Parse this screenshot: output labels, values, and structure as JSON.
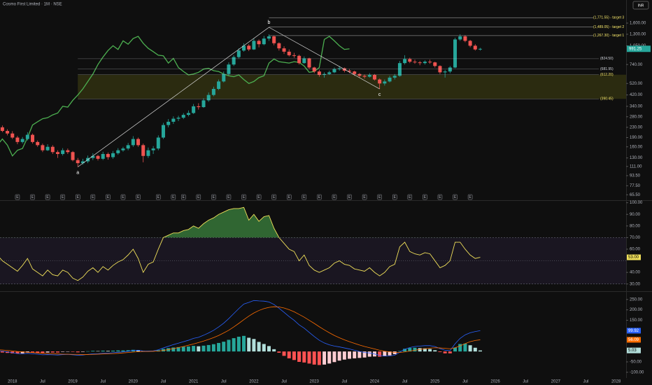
{
  "chart_data": {
    "type": "candlestick",
    "title": "Cosmo First Limited · 1M · NSE",
    "currency": "INR",
    "log": true,
    "ylim": [
      60,
      2460
    ],
    "xlim": [
      "2017-09",
      "2028-03"
    ],
    "colors": {
      "up": "#26a69a",
      "down": "#ef5350",
      "lagging": "#4caf50",
      "targets": "#f5e66b",
      "levels": "#d1d4dc",
      "zone": "#4d4d12",
      "waves": "#d9d9d9",
      "events": "#9598a1"
    },
    "yticks": [
      {
        "value": 1600,
        "label": "1,600.00"
      },
      {
        "value": 1300,
        "label": "1,300.00"
      },
      {
        "value": 1050,
        "label": "1,050.00"
      },
      {
        "value": 740,
        "label": "740.00"
      },
      {
        "value": 520,
        "label": "520.00"
      },
      {
        "value": 420,
        "label": "420.00"
      },
      {
        "value": 340,
        "label": "340.00"
      },
      {
        "value": 280,
        "label": "280.00"
      },
      {
        "value": 230,
        "label": "230.00"
      },
      {
        "value": 190,
        "label": "190.00"
      },
      {
        "value": 160,
        "label": "160.00"
      },
      {
        "value": 130,
        "label": "130.00"
      },
      {
        "value": 111,
        "label": "111.00"
      },
      {
        "value": 93.5,
        "label": "93.50"
      },
      {
        "value": 77.5,
        "label": "77.50"
      },
      {
        "value": 65.5,
        "label": "65.50"
      }
    ],
    "xticks": [
      {
        "value": "2018-01",
        "label": "2018"
      },
      {
        "value": "2018-07",
        "label": "Jul"
      },
      {
        "value": "2019-01",
        "label": "2019"
      },
      {
        "value": "2019-07",
        "label": "Jul"
      },
      {
        "value": "2020-01",
        "label": "2020"
      },
      {
        "value": "2020-07",
        "label": "Jul"
      },
      {
        "value": "2021-01",
        "label": "2021"
      },
      {
        "value": "2021-07",
        "label": "Jul"
      },
      {
        "value": "2022-01",
        "label": "2022"
      },
      {
        "value": "2022-07",
        "label": "Jul"
      },
      {
        "value": "2023-01",
        "label": "2023"
      },
      {
        "value": "2023-07",
        "label": "Jul"
      },
      {
        "value": "2024-01",
        "label": "2024"
      },
      {
        "value": "2024-07",
        "label": "Jul"
      },
      {
        "value": "2025-01",
        "label": "2025"
      },
      {
        "value": "2025-07",
        "label": "Jul"
      },
      {
        "value": "2026-01",
        "label": "2026"
      },
      {
        "value": "2026-07",
        "label": "Jul"
      },
      {
        "value": "2027-01",
        "label": "2027"
      },
      {
        "value": "2027-07",
        "label": "Jul"
      },
      {
        "value": "2028-01",
        "label": "2028"
      }
    ],
    "x": [
      "2017-10",
      "2017-11",
      "2017-12",
      "2018-01",
      "2018-02",
      "2018-03",
      "2018-04",
      "2018-05",
      "2018-06",
      "2018-07",
      "2018-08",
      "2018-09",
      "2018-10",
      "2018-11",
      "2018-12",
      "2019-01",
      "2019-02",
      "2019-03",
      "2019-04",
      "2019-05",
      "2019-06",
      "2019-07",
      "2019-08",
      "2019-09",
      "2019-10",
      "2019-11",
      "2019-12",
      "2020-01",
      "2020-02",
      "2020-03",
      "2020-04",
      "2020-05",
      "2020-06",
      "2020-07",
      "2020-08",
      "2020-09",
      "2020-10",
      "2020-11",
      "2020-12",
      "2021-01",
      "2021-02",
      "2021-03",
      "2021-04",
      "2021-05",
      "2021-06",
      "2021-07",
      "2021-08",
      "2021-09",
      "2021-10",
      "2021-11",
      "2021-12",
      "2022-01",
      "2022-02",
      "2022-03",
      "2022-04",
      "2022-05",
      "2022-06",
      "2022-07",
      "2022-08",
      "2022-09",
      "2022-10",
      "2022-11",
      "2022-12",
      "2023-01",
      "2023-02",
      "2023-03",
      "2023-04",
      "2023-05",
      "2023-06",
      "2023-07",
      "2023-08",
      "2023-09",
      "2023-10",
      "2023-11",
      "2023-12",
      "2024-01",
      "2024-02",
      "2024-03",
      "2024-04",
      "2024-05",
      "2024-06",
      "2024-07",
      "2024-08",
      "2024-09",
      "2024-10",
      "2024-11",
      "2024-12",
      "2025-01",
      "2025-02",
      "2025-03",
      "2025-04",
      "2025-05",
      "2025-06",
      "2025-07",
      "2025-08",
      "2025-09",
      "2025-10"
    ],
    "ohlc": [
      [
        240,
        248,
        222,
        230
      ],
      [
        230,
        238,
        210,
        215
      ],
      [
        215,
        222,
        198,
        205
      ],
      [
        205,
        214,
        185,
        190
      ],
      [
        190,
        196,
        168,
        175
      ],
      [
        175,
        192,
        170,
        185
      ],
      [
        185,
        210,
        180,
        200
      ],
      [
        200,
        205,
        170,
        175
      ],
      [
        175,
        180,
        160,
        165
      ],
      [
        165,
        170,
        145,
        150
      ],
      [
        150,
        168,
        148,
        160
      ],
      [
        160,
        165,
        140,
        145
      ],
      [
        145,
        150,
        130,
        140
      ],
      [
        140,
        156,
        136,
        150
      ],
      [
        150,
        155,
        140,
        145
      ],
      [
        145,
        148,
        122,
        125
      ],
      [
        125,
        130,
        110,
        118
      ],
      [
        118,
        128,
        115,
        122
      ],
      [
        122,
        136,
        118,
        130
      ],
      [
        130,
        142,
        125,
        135
      ],
      [
        135,
        138,
        124,
        128
      ],
      [
        128,
        146,
        125,
        140
      ],
      [
        140,
        144,
        126,
        132
      ],
      [
        132,
        148,
        128,
        142
      ],
      [
        142,
        156,
        138,
        150
      ],
      [
        150,
        160,
        146,
        155
      ],
      [
        155,
        172,
        150,
        165
      ],
      [
        165,
        195,
        160,
        185
      ],
      [
        185,
        190,
        160,
        165
      ],
      [
        165,
        170,
        120,
        135
      ],
      [
        135,
        158,
        130,
        150
      ],
      [
        150,
        162,
        140,
        155
      ],
      [
        155,
        198,
        150,
        190
      ],
      [
        190,
        250,
        185,
        240
      ],
      [
        240,
        268,
        230,
        255
      ],
      [
        255,
        282,
        245,
        270
      ],
      [
        270,
        285,
        258,
        275
      ],
      [
        275,
        300,
        268,
        290
      ],
      [
        290,
        315,
        282,
        300
      ],
      [
        300,
        355,
        295,
        340
      ],
      [
        340,
        360,
        320,
        335
      ],
      [
        335,
        395,
        330,
        380
      ],
      [
        380,
        440,
        370,
        420
      ],
      [
        420,
        490,
        410,
        470
      ],
      [
        470,
        560,
        460,
        540
      ],
      [
        540,
        650,
        530,
        620
      ],
      [
        620,
        770,
        600,
        740
      ],
      [
        740,
        880,
        720,
        850
      ],
      [
        850,
        1000,
        830,
        960
      ],
      [
        960,
        1100,
        940,
        1050
      ],
      [
        1050,
        1080,
        950,
        980
      ],
      [
        980,
        1200,
        970,
        1150
      ],
      [
        1150,
        1180,
        1020,
        1080
      ],
      [
        1080,
        1260,
        1060,
        1200
      ],
      [
        1200,
        1300,
        1150,
        1250
      ],
      [
        1250,
        1270,
        1060,
        1100
      ],
      [
        1100,
        1120,
        960,
        1000
      ],
      [
        1000,
        1040,
        900,
        940
      ],
      [
        940,
        980,
        860,
        880
      ],
      [
        880,
        920,
        840,
        870
      ],
      [
        870,
        890,
        740,
        760
      ],
      [
        760,
        860,
        750,
        830
      ],
      [
        830,
        840,
        680,
        700
      ],
      [
        700,
        710,
        630,
        650
      ],
      [
        650,
        670,
        590,
        610
      ],
      [
        610,
        640,
        580,
        620
      ],
      [
        620,
        660,
        610,
        640
      ],
      [
        640,
        700,
        630,
        680
      ],
      [
        680,
        720,
        660,
        690
      ],
      [
        690,
        700,
        640,
        660
      ],
      [
        660,
        680,
        630,
        650
      ],
      [
        650,
        660,
        600,
        620
      ],
      [
        620,
        630,
        580,
        600
      ],
      [
        600,
        615,
        570,
        590
      ],
      [
        590,
        630,
        580,
        610
      ],
      [
        610,
        620,
        550,
        560
      ],
      [
        560,
        570,
        470,
        520
      ],
      [
        520,
        560,
        500,
        540
      ],
      [
        540,
        600,
        530,
        580
      ],
      [
        580,
        620,
        560,
        600
      ],
      [
        600,
        790,
        590,
        760
      ],
      [
        760,
        880,
        740,
        820
      ],
      [
        820,
        840,
        760,
        780
      ],
      [
        780,
        810,
        750,
        770
      ],
      [
        770,
        790,
        730,
        760
      ],
      [
        760,
        800,
        740,
        780
      ],
      [
        780,
        810,
        750,
        770
      ],
      [
        770,
        780,
        700,
        720
      ],
      [
        720,
        730,
        620,
        640
      ],
      [
        640,
        670,
        580,
        650
      ],
      [
        650,
        720,
        630,
        700
      ],
      [
        700,
        1220,
        690,
        1180
      ],
      [
        1180,
        1300,
        1150,
        1250
      ],
      [
        1250,
        1280,
        1120,
        1150
      ],
      [
        1150,
        1170,
        1020,
        1050
      ],
      [
        1050,
        1080,
        960,
        980
      ],
      [
        980,
        1010,
        960,
        991.25
      ]
    ],
    "lag": 26,
    "targets": [
      {
        "value": 1771.55,
        "label": "(1,771.55) - target 3"
      },
      {
        "value": 1489.05,
        "label": "(1,489.05) - target 2"
      },
      {
        "value": 1267.3,
        "label": "(1,267.30) - target 1"
      }
    ],
    "levels": [
      {
        "value": 824.5,
        "label": "(824.50)"
      },
      {
        "value": 681.95,
        "label": "(681.95)"
      },
      {
        "value": 612.2,
        "label": "(612.20)"
      },
      {
        "value": 390.45,
        "label": "(390.45)"
      }
    ],
    "zone": {
      "start": "2019-02",
      "levels": [
        2,
        3
      ]
    },
    "waves": [
      {
        "label": "a",
        "date": "2019-02",
        "value": 110
      },
      {
        "label": "b",
        "date": "2022-04",
        "value": 1480
      },
      {
        "label": "c",
        "date": "2024-02",
        "value": 470
      }
    ],
    "events": {
      "label": "E",
      "dates": [
        "2018-02",
        "2018-05",
        "2018-08",
        "2018-11",
        "2019-02",
        "2019-05",
        "2019-08",
        "2019-11",
        "2020-02",
        "2020-06",
        "2020-09",
        "2020-11",
        "2021-02",
        "2021-05",
        "2021-08",
        "2021-11",
        "2022-02",
        "2022-05",
        "2022-08",
        "2022-11",
        "2023-02",
        "2023-05",
        "2023-08",
        "2023-11",
        "2024-02",
        "2024-05",
        "2024-08",
        "2024-11",
        "2025-02",
        "2025-05",
        "2025-08"
      ]
    },
    "rsi": {
      "color": "#f0e05a",
      "ylim": [
        25,
        101
      ],
      "band": [
        30,
        70
      ],
      "midline": 50,
      "band_color": "#7e57c2",
      "overbought_color": "#4caf50",
      "yticks": [
        {
          "value": 100,
          "label": "100.00"
        },
        {
          "value": 90,
          "label": "90.00"
        },
        {
          "value": 80,
          "label": "80.00"
        },
        {
          "value": 70,
          "label": "70.00"
        },
        {
          "value": 60,
          "label": "60.00"
        },
        {
          "value": 40,
          "label": "40.00"
        },
        {
          "value": 30,
          "label": "30.00"
        }
      ],
      "values": [
        55,
        50,
        47,
        44,
        41,
        46,
        52,
        43,
        40,
        37,
        42,
        38,
        37,
        42,
        40,
        35,
        33,
        36,
        41,
        44,
        40,
        45,
        42,
        46,
        49,
        51,
        55,
        60,
        52,
        40,
        47,
        49,
        60,
        70,
        72,
        74,
        74,
        76,
        77,
        80,
        78,
        82,
        85,
        87,
        90,
        92,
        94,
        95,
        95,
        96,
        85,
        90,
        84,
        88,
        89,
        78,
        70,
        65,
        60,
        58,
        50,
        55,
        46,
        42,
        40,
        42,
        44,
        48,
        50,
        47,
        46,
        43,
        42,
        41,
        44,
        40,
        37,
        40,
        45,
        47,
        62,
        66,
        58,
        56,
        55,
        57,
        56,
        50,
        44,
        46,
        50,
        66,
        66,
        60,
        55,
        52,
        53
      ],
      "tag": {
        "value": 53,
        "label": "53.00"
      }
    },
    "macd": {
      "ylim": [
        -114,
        283
      ],
      "macd_color": "#2962ff",
      "signal_color": "#ff6d00",
      "hist_colors": {
        "up_rising": "#26a69a",
        "up_falling": "#b2dfdb",
        "down_falling": "#ff5252",
        "down_rising": "#ffcdd2"
      },
      "yticks": [
        {
          "value": 250,
          "label": "250.00"
        },
        {
          "value": 200,
          "label": "200.00"
        },
        {
          "value": 150,
          "label": "150.00"
        },
        {
          "value": -50,
          "label": "-50.00"
        },
        {
          "value": -100,
          "label": "-100.00"
        }
      ],
      "macd": [
        5,
        2,
        -2,
        -6,
        -10,
        -11,
        -9,
        -11,
        -13,
        -16,
        -15,
        -16,
        -17,
        -15,
        -14,
        -16,
        -18,
        -17,
        -14,
        -11,
        -11,
        -8,
        -8,
        -6,
        -4,
        -2,
        1,
        5,
        6,
        2,
        2,
        3,
        8,
        17,
        25,
        33,
        40,
        47,
        54,
        63,
        68,
        78,
        89,
        102,
        118,
        136,
        158,
        182,
        206,
        228,
        236,
        245,
        243,
        242,
        238,
        226,
        208,
        188,
        168,
        150,
        128,
        112,
        92,
        72,
        54,
        41,
        32,
        26,
        22,
        17,
        12,
        6,
        0,
        -5,
        -7,
        -12,
        -19,
        -22,
        -21,
        -18,
        -3,
        11,
        19,
        24,
        26,
        28,
        28,
        24,
        14,
        6,
        4,
        37,
        63,
        80,
        90,
        96,
        99.92
      ],
      "signal": [
        8,
        7,
        5,
        3,
        0,
        -2,
        -4,
        -5,
        -7,
        -9,
        -10,
        -11,
        -12,
        -13,
        -13,
        -14,
        -14,
        -15,
        -15,
        -14,
        -13,
        -12,
        -11,
        -10,
        -9,
        -7,
        -5,
        -3,
        -1,
        0,
        0,
        1,
        2,
        5,
        9,
        14,
        19,
        24,
        30,
        36,
        43,
        50,
        58,
        67,
        77,
        89,
        102,
        118,
        135,
        153,
        170,
        185,
        197,
        206,
        212,
        215,
        214,
        209,
        201,
        191,
        178,
        165,
        150,
        135,
        119,
        104,
        90,
        77,
        66,
        56,
        47,
        39,
        31,
        24,
        18,
        12,
        6,
        1,
        -2,
        -5,
        -5,
        -2,
        2,
        6,
        10,
        13,
        16,
        18,
        17,
        15,
        13,
        18,
        27,
        38,
        47,
        53,
        56.09
      ],
      "hist": [
        -3,
        -5,
        -7,
        -9,
        -10,
        -9,
        -5,
        -6,
        -6,
        -7,
        -5,
        -5,
        -5,
        -2,
        -1,
        -2,
        -4,
        -2,
        1,
        3,
        2,
        4,
        3,
        4,
        5,
        5,
        6,
        8,
        7,
        2,
        2,
        2,
        6,
        12,
        16,
        19,
        21,
        23,
        24,
        27,
        25,
        28,
        31,
        35,
        41,
        47,
        56,
        64,
        71,
        75,
        66,
        60,
        46,
        36,
        26,
        11,
        -6,
        -21,
        -33,
        -41,
        -50,
        -53,
        -58,
        -63,
        -65,
        -63,
        -58,
        -51,
        -44,
        -39,
        -35,
        -33,
        -31,
        -29,
        -25,
        -24,
        -25,
        -23,
        -19,
        -13,
        2,
        13,
        17,
        18,
        16,
        15,
        12,
        6,
        -3,
        -9,
        -9,
        19,
        36,
        38,
        30,
        18,
        5.03
      ]
    }
  }
}
